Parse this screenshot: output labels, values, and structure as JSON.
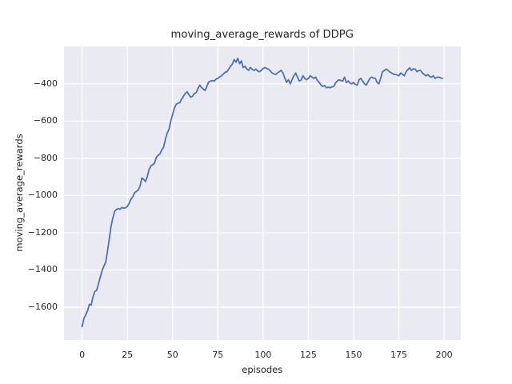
{
  "figure": {
    "background_color": "#ffffff"
  },
  "chart_data": {
    "type": "line",
    "title": "moving_average_rewards of DDPG",
    "xlabel": "episodes",
    "ylabel": "moving_average_rewards",
    "x_ticks": [
      0,
      25,
      50,
      75,
      100,
      125,
      150,
      175,
      200
    ],
    "y_ticks": [
      -400,
      -600,
      -800,
      -1000,
      -1200,
      -1400,
      -1600
    ],
    "xlim": [
      -10,
      209
    ],
    "ylim": [
      -1776,
      -197
    ],
    "grid": true,
    "legend_position": "none",
    "style": {
      "axes_background": "#eaeaf2",
      "grid_color": "#ffffff",
      "line_color": "#4c72b0",
      "text_color": "#262626"
    },
    "series": [
      {
        "name": "moving_average_rewards",
        "x_start": 0,
        "x_step": 1,
        "values": [
          -1704,
          -1660,
          -1640,
          -1620,
          -1585,
          -1588,
          -1545,
          -1515,
          -1510,
          -1475,
          -1440,
          -1405,
          -1380,
          -1360,
          -1300,
          -1235,
          -1165,
          -1120,
          -1085,
          -1075,
          -1070,
          -1074,
          -1064,
          -1068,
          -1066,
          -1058,
          -1042,
          -1020,
          -1007,
          -985,
          -978,
          -971,
          -950,
          -906,
          -913,
          -925,
          -899,
          -860,
          -841,
          -834,
          -827,
          -795,
          -784,
          -777,
          -755,
          -741,
          -700,
          -665,
          -645,
          -600,
          -565,
          -530,
          -510,
          -505,
          -500,
          -482,
          -467,
          -452,
          -443,
          -458,
          -472,
          -467,
          -452,
          -448,
          -425,
          -407,
          -420,
          -429,
          -436,
          -412,
          -390,
          -385,
          -383,
          -385,
          -375,
          -371,
          -363,
          -357,
          -348,
          -338,
          -335,
          -321,
          -306,
          -295,
          -270,
          -284,
          -263,
          -292,
          -277,
          -313,
          -306,
          -320,
          -328,
          -313,
          -322,
          -328,
          -321,
          -331,
          -335,
          -328,
          -318,
          -313,
          -318,
          -321,
          -331,
          -342,
          -347,
          -350,
          -341,
          -335,
          -328,
          -342,
          -370,
          -392,
          -378,
          -400,
          -378,
          -357,
          -342,
          -364,
          -385,
          -380,
          -357,
          -371,
          -378,
          -371,
          -357,
          -364,
          -371,
          -364,
          -382,
          -393,
          -407,
          -414,
          -409,
          -421,
          -419,
          -421,
          -417,
          -414,
          -396,
          -385,
          -378,
          -383,
          -385,
          -364,
          -393,
          -385,
          -396,
          -400,
          -393,
          -404,
          -407,
          -378,
          -371,
          -386,
          -400,
          -407,
          -388,
          -371,
          -364,
          -369,
          -371,
          -393,
          -400,
          -368,
          -335,
          -328,
          -321,
          -328,
          -336,
          -342,
          -348,
          -350,
          -352,
          -357,
          -342,
          -349,
          -357,
          -335,
          -324,
          -314,
          -328,
          -320,
          -321,
          -335,
          -329,
          -328,
          -342,
          -350,
          -357,
          -350,
          -361,
          -364,
          -357,
          -371,
          -365,
          -364,
          -368,
          -371
        ]
      }
    ]
  }
}
